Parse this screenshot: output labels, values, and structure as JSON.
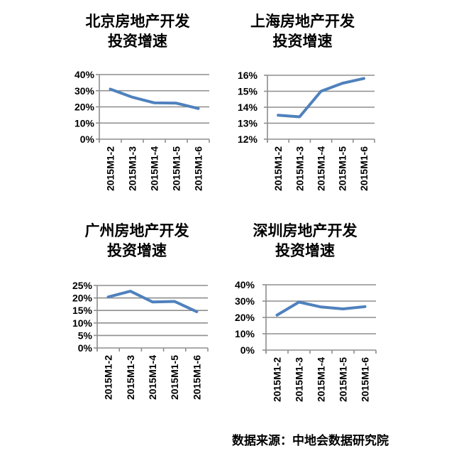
{
  "page": {
    "background": "#ffffff"
  },
  "style": {
    "line_color": "#4F81BD",
    "grid_color": "#8E8E8E",
    "text_color": "#000000"
  },
  "footer": {
    "source_label": "数据来源：中地会数据研究院"
  },
  "chart_data": [
    {
      "type": "line",
      "city": "北京",
      "title": "北京房地产开发\n投资增速",
      "categories": [
        "2015M1-2",
        "2015M1-3",
        "2015M1-4",
        "2015M1-5",
        "2015M1-6"
      ],
      "values": [
        31,
        26,
        22.5,
        22.3,
        19
      ],
      "ylim": [
        0,
        40
      ],
      "ytick_step": 10,
      "unit": "%",
      "xlabel": "",
      "ylabel": "",
      "grid": true,
      "legend": false
    },
    {
      "type": "line",
      "city": "上海",
      "title": "上海房地产开发\n投资增速",
      "categories": [
        "2015M1-2",
        "2015M1-3",
        "2015M1-4",
        "2015M1-5",
        "2015M1-6"
      ],
      "values": [
        13.5,
        13.4,
        15,
        15.5,
        15.8
      ],
      "ylim": [
        12,
        16
      ],
      "ytick_step": 1,
      "unit": "%",
      "xlabel": "",
      "ylabel": "",
      "grid": true,
      "legend": false
    },
    {
      "type": "line",
      "city": "广州",
      "title": "广州房地产开发\n投资增速",
      "categories": [
        "2015M1-2",
        "2015M1-3",
        "2015M1-4",
        "2015M1-5",
        "2015M1-6"
      ],
      "values": [
        20.4,
        22.7,
        18.4,
        18.6,
        14.5
      ],
      "ylim": [
        0,
        25
      ],
      "ytick_step": 5,
      "unit": "%",
      "xlabel": "",
      "ylabel": "",
      "grid": true,
      "legend": false
    },
    {
      "type": "line",
      "city": "深圳",
      "title": "深圳房地产开发\n投资增速",
      "categories": [
        "2015M1-2",
        "2015M1-3",
        "2015M1-4",
        "2015M1-5",
        "2015M1-6"
      ],
      "values": [
        21.4,
        29.4,
        26.4,
        25.2,
        26.6
      ],
      "ylim": [
        0,
        40
      ],
      "ytick_step": 10,
      "unit": "%",
      "xlabel": "",
      "ylabel": "",
      "grid": true,
      "legend": false
    }
  ]
}
